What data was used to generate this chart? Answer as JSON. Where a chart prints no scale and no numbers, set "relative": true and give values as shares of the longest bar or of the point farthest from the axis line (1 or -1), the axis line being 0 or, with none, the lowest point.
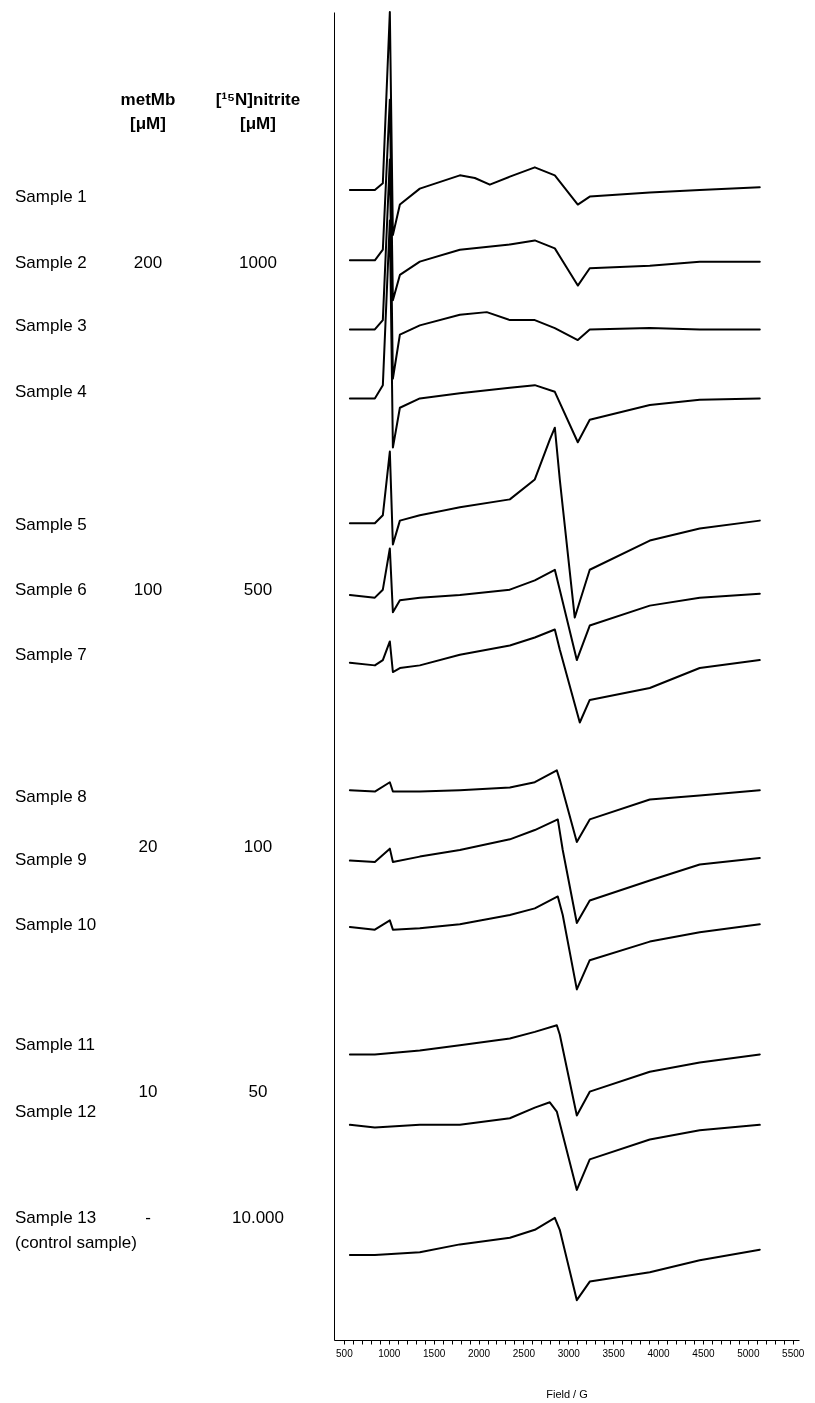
{
  "chart_data": {
    "type": "line",
    "relative": true,
    "xlabel": "Field / G",
    "xlim": [
      390,
      5570
    ],
    "xticks": [
      500,
      {
        "value": 600,
        "label": null
      },
      {
        "value": 700,
        "label": null
      },
      {
        "value": 800,
        "label": null
      },
      {
        "value": 900,
        "label": null
      },
      1000,
      {
        "value": 1100,
        "label": null
      },
      {
        "value": 1200,
        "label": null
      },
      {
        "value": 1300,
        "label": null
      },
      {
        "value": 1400,
        "label": null
      },
      1500,
      {
        "value": 1600,
        "label": null
      },
      {
        "value": 1700,
        "label": null
      },
      {
        "value": 1800,
        "label": null
      },
      {
        "value": 1900,
        "label": null
      },
      2000,
      {
        "value": 2100,
        "label": null
      },
      {
        "value": 2200,
        "label": null
      },
      {
        "value": 2300,
        "label": null
      },
      {
        "value": 2400,
        "label": null
      },
      2500,
      {
        "value": 2600,
        "label": null
      },
      {
        "value": 2700,
        "label": null
      },
      {
        "value": 2800,
        "label": null
      },
      {
        "value": 2900,
        "label": null
      },
      3000,
      {
        "value": 3100,
        "label": null
      },
      {
        "value": 3200,
        "label": null
      },
      {
        "value": 3300,
        "label": null
      },
      {
        "value": 3400,
        "label": null
      },
      3500,
      {
        "value": 3600,
        "label": null
      },
      {
        "value": 3700,
        "label": null
      },
      {
        "value": 3800,
        "label": null
      },
      {
        "value": 3900,
        "label": null
      },
      4000,
      {
        "value": 4100,
        "label": null
      },
      {
        "value": 4200,
        "label": null
      },
      {
        "value": 4300,
        "label": null
      },
      {
        "value": 4400,
        "label": null
      },
      4500,
      {
        "value": 4600,
        "label": null
      },
      {
        "value": 4700,
        "label": null
      },
      {
        "value": 4800,
        "label": null
      },
      {
        "value": 4900,
        "label": null
      },
      5000,
      {
        "value": 5100,
        "label": null
      },
      {
        "value": 5200,
        "label": null
      },
      {
        "value": 5300,
        "label": null
      },
      {
        "value": 5400,
        "label": null
      },
      5500
    ],
    "series": [
      {
        "color": "#000000",
        "x": [
          567,
          845,
          934,
          1012,
          1046,
          1124,
          1346,
          1792,
          1959,
          2126,
          2349,
          2627,
          2850,
          3106,
          3239,
          3908,
          4464,
          5133
        ],
        "values": [
          0.866,
          0.866,
          0.871,
          1,
          0.832,
          0.855,
          0.867,
          0.877,
          0.875,
          0.87,
          0.876,
          0.883,
          0.877,
          0.855,
          0.861,
          0.864,
          0.866,
          0.868
        ]
      },
      {
        "color": "#000000",
        "x": [
          567,
          845,
          934,
          1012,
          1046,
          1124,
          1346,
          1792,
          2349,
          2627,
          2850,
          3106,
          3239,
          3908,
          4464,
          5133
        ],
        "values": [
          0.813,
          0.813,
          0.821,
          0.934,
          0.783,
          0.802,
          0.812,
          0.821,
          0.825,
          0.828,
          0.822,
          0.794,
          0.807,
          0.809,
          0.812,
          0.812
        ]
      },
      {
        "color": "#000000",
        "x": [
          567,
          845,
          934,
          1012,
          1046,
          1124,
          1346,
          1792,
          2092,
          2349,
          2627,
          2850,
          3106,
          3239,
          3908,
          4464,
          5133
        ],
        "values": [
          0.761,
          0.761,
          0.768,
          0.889,
          0.724,
          0.757,
          0.764,
          0.772,
          0.774,
          0.768,
          0.768,
          0.762,
          0.753,
          0.761,
          0.762,
          0.761,
          0.761
        ]
      },
      {
        "color": "#000000",
        "x": [
          567,
          845,
          934,
          1012,
          1046,
          1124,
          1346,
          1792,
          2349,
          2627,
          2850,
          3106,
          3239,
          3908,
          4464,
          5133
        ],
        "values": [
          0.709,
          0.709,
          0.719,
          0.843,
          0.672,
          0.702,
          0.709,
          0.713,
          0.717,
          0.719,
          0.714,
          0.676,
          0.693,
          0.704,
          0.708,
          0.709
        ]
      },
      {
        "color": "#000000",
        "x": [
          567,
          845,
          934,
          1012,
          1046,
          1124,
          1346,
          1792,
          2349,
          2627,
          2794,
          2850,
          2905,
          3072,
          3239,
          3908,
          4464,
          5133
        ],
        "values": [
          0.615,
          0.615,
          0.621,
          0.669,
          0.599,
          0.617,
          0.621,
          0.627,
          0.633,
          0.648,
          0.678,
          0.687,
          0.648,
          0.544,
          0.58,
          0.602,
          0.611,
          0.617
        ]
      },
      {
        "color": "#000000",
        "x": [
          567,
          845,
          934,
          1012,
          1046,
          1124,
          1346,
          1792,
          2349,
          2627,
          2850,
          2905,
          3095,
          3239,
          3908,
          4464,
          5133
        ],
        "values": [
          0.561,
          0.559,
          0.565,
          0.596,
          0.548,
          0.557,
          0.559,
          0.561,
          0.565,
          0.572,
          0.58,
          0.565,
          0.512,
          0.538,
          0.553,
          0.559,
          0.562
        ]
      },
      {
        "color": "#000000",
        "x": [
          567,
          845,
          934,
          1012,
          1046,
          1124,
          1346,
          1792,
          2349,
          2627,
          2850,
          2905,
          3128,
          3239,
          3908,
          4464,
          5133
        ],
        "values": [
          0.51,
          0.508,
          0.512,
          0.526,
          0.503,
          0.506,
          0.508,
          0.516,
          0.523,
          0.529,
          0.535,
          0.52,
          0.465,
          0.482,
          0.491,
          0.506,
          0.512
        ]
      },
      {
        "color": "#000000",
        "x": [
          567,
          845,
          1012,
          1046,
          1346,
          1792,
          2349,
          2627,
          2872,
          2905,
          3095,
          3239,
          3908,
          4464,
          5133
        ],
        "values": [
          0.414,
          0.413,
          0.42,
          0.413,
          0.413,
          0.414,
          0.416,
          0.42,
          0.429,
          0.422,
          0.375,
          0.392,
          0.407,
          0.41,
          0.414
        ]
      },
      {
        "color": "#000000",
        "x": [
          567,
          845,
          1012,
          1046,
          1346,
          1792,
          2349,
          2627,
          2883,
          2938,
          3095,
          3239,
          3908,
          4464,
          5133
        ],
        "values": [
          0.361,
          0.36,
          0.37,
          0.36,
          0.364,
          0.369,
          0.377,
          0.384,
          0.392,
          0.369,
          0.314,
          0.331,
          0.346,
          0.358,
          0.363
        ]
      },
      {
        "color": "#000000",
        "x": [
          567,
          845,
          1012,
          1046,
          1346,
          1792,
          2349,
          2627,
          2883,
          2938,
          3095,
          3239,
          3908,
          4464,
          5133
        ],
        "values": [
          0.311,
          0.309,
          0.316,
          0.309,
          0.31,
          0.313,
          0.32,
          0.325,
          0.334,
          0.32,
          0.264,
          0.286,
          0.3,
          0.307,
          0.313
        ]
      },
      {
        "color": "#000000",
        "x": [
          567,
          845,
          1346,
          1792,
          2349,
          2627,
          2872,
          2905,
          3095,
          3239,
          3908,
          4464,
          5133
        ],
        "values": [
          0.215,
          0.215,
          0.218,
          0.222,
          0.227,
          0.232,
          0.237,
          0.23,
          0.169,
          0.187,
          0.202,
          0.209,
          0.215
        ]
      },
      {
        "color": "#000000",
        "x": [
          567,
          845,
          1346,
          1792,
          2349,
          2627,
          2794,
          2872,
          3095,
          3239,
          3908,
          4464,
          5133
        ],
        "values": [
          0.162,
          0.16,
          0.162,
          0.162,
          0.167,
          0.175,
          0.179,
          0.172,
          0.113,
          0.136,
          0.151,
          0.158,
          0.162
        ]
      },
      {
        "color": "#000000",
        "x": [
          567,
          845,
          1346,
          1792,
          2349,
          2627,
          2850,
          2905,
          3095,
          3239,
          3908,
          4464,
          5133
        ],
        "values": [
          0.064,
          0.064,
          0.066,
          0.072,
          0.077,
          0.083,
          0.092,
          0.083,
          0.03,
          0.044,
          0.051,
          0.06,
          0.068
        ]
      }
    ],
    "annotations": [
      "metMb",
      "[μM]",
      "[¹⁵N]nitrite",
      "[μM]",
      "Sample 1",
      "Sample 2",
      "200",
      "1000",
      "Sample 3",
      "Sample 4",
      "Sample 5",
      "Sample 6",
      "100",
      "500",
      "Sample 7",
      "Sample 8",
      "Sample 9",
      "20",
      "100",
      "Sample 10",
      "Sample 11",
      "Sample 12",
      "10",
      "50",
      "Sample 13",
      "-",
      "10.000",
      "(control sample)"
    ]
  }
}
